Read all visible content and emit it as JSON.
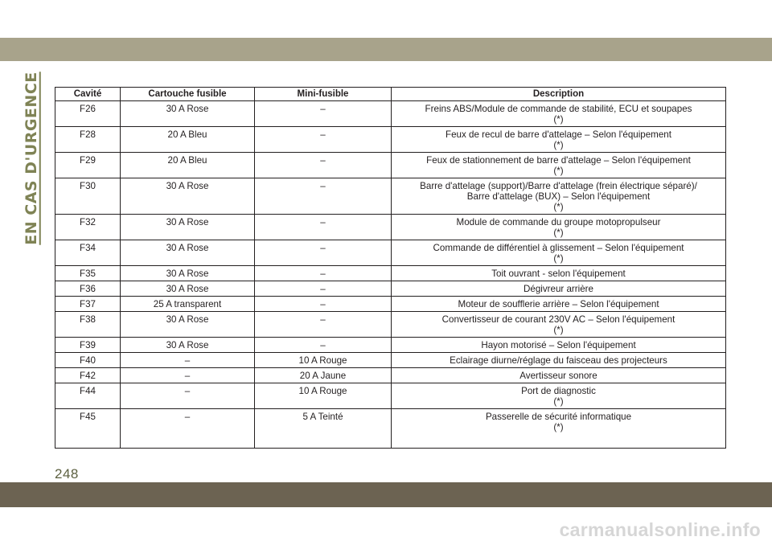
{
  "section_title": "EN CAS D'URGENCE",
  "table": {
    "headers": [
      "Cavité",
      "Cartouche fusible",
      "Mini-fusible",
      "Description"
    ],
    "rows": [
      [
        "F26",
        "30 A Rose",
        "–",
        "Freins ABS/Module de commande de stabilité, ECU et soupapes\n(*)"
      ],
      [
        "F28",
        "20 A Bleu",
        "–",
        "Feux de recul de barre d'attelage – Selon l'équipement\n(*)"
      ],
      [
        "F29",
        "20 A Bleu",
        "–",
        "Feux de stationnement de barre d'attelage – Selon l'équipement\n(*)"
      ],
      [
        "F30",
        "30 A Rose",
        "–",
        "Barre d'attelage (support)/Barre d'attelage (frein électrique séparé)/\nBarre d'attelage (BUX) – Selon l'équipement\n(*)"
      ],
      [
        "F32",
        "30 A Rose",
        "–",
        "Module de commande du groupe motopropulseur\n(*)"
      ],
      [
        "F34",
        "30 A Rose",
        "–",
        "Commande de différentiel à glissement – Selon l'équipement\n(*)"
      ],
      [
        "F35",
        "30 A Rose",
        "–",
        "Toit ouvrant - selon l'équipement"
      ],
      [
        "F36",
        "30 A Rose",
        "–",
        "Dégivreur arrière"
      ],
      [
        "F37",
        "25 A transparent",
        "–",
        "Moteur de soufflerie arrière – Selon l'équipement"
      ],
      [
        "F38",
        "30 A Rose",
        "–",
        "Convertisseur de courant 230V AC – Selon l'équipement\n(*)"
      ],
      [
        "F39",
        "30 A Rose",
        "–",
        "Hayon motorisé – Selon l'équipement"
      ],
      [
        "F40",
        "–",
        "10 A Rouge",
        "Eclairage diurne/réglage du faisceau des projecteurs"
      ],
      [
        "F42",
        "–",
        "20 A Jaune",
        "Avertisseur sonore"
      ],
      [
        "F44",
        "–",
        "10 A Rouge",
        "Port de diagnostic\n(*)"
      ],
      [
        "F45",
        "–",
        "5 A Teinté",
        "Passerelle de sécurité informatique\n(*)"
      ]
    ]
  },
  "page_number": "248",
  "watermark": "carmanualsonline.info",
  "colors": {
    "top_band": "#a8a38b",
    "bottom_band": "#6c6352",
    "section_title": "#7f8355",
    "page_number": "#5c6040",
    "watermark": "#d6d6d6"
  }
}
